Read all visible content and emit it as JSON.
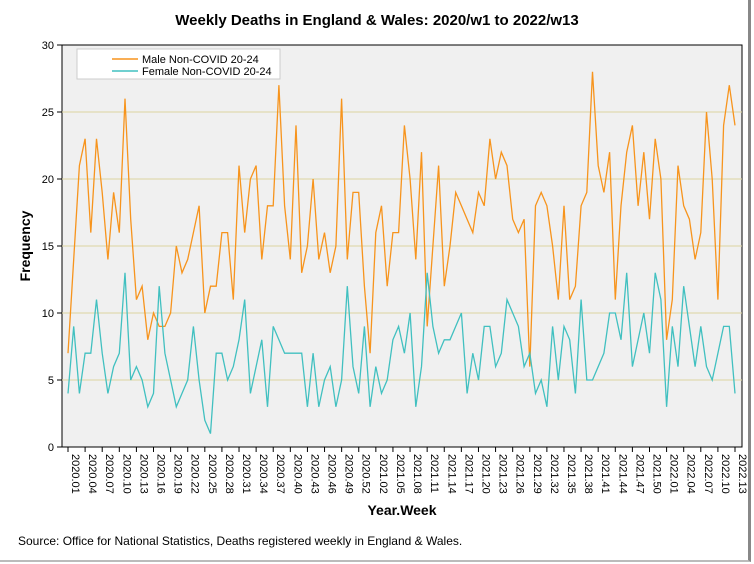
{
  "chart_data": {
    "type": "line",
    "title": "Weekly Deaths in England & Wales: 2020/w1 to 2022/w13",
    "xlabel": "Year.Week",
    "ylabel": "Frequency",
    "ylim": [
      0,
      30
    ],
    "yticks": [
      0,
      5,
      10,
      15,
      20,
      25,
      30
    ],
    "grid": true,
    "legend_position": "top-left",
    "weeks_per_year": {
      "2020": 53,
      "2021": 52,
      "2022": 13
    },
    "tick_every": 3,
    "series": [
      {
        "name": "Male Non-COVID 20-24",
        "color": "#f7941d",
        "values": [
          7,
          14,
          21,
          23,
          16,
          23,
          19,
          14,
          19,
          16,
          26,
          17,
          11,
          12,
          8,
          10,
          9,
          9,
          10,
          15,
          13,
          14,
          16,
          18,
          10,
          12,
          12,
          16,
          16,
          11,
          21,
          16,
          20,
          21,
          14,
          18,
          18,
          27,
          18,
          14,
          24,
          13,
          15,
          20,
          14,
          16,
          13,
          15,
          26,
          14,
          19,
          19,
          12,
          7,
          16,
          18,
          12,
          16,
          16,
          24,
          20,
          14,
          22,
          9,
          15,
          21,
          12,
          15,
          19,
          18,
          17,
          16,
          19,
          18,
          23,
          20,
          22,
          21,
          17,
          16,
          17,
          6,
          18,
          19,
          18,
          15,
          11,
          18,
          11,
          12,
          18,
          19,
          28,
          21,
          19,
          22,
          11,
          18,
          22,
          24,
          18,
          22,
          17,
          23,
          20,
          8,
          11,
          21,
          18,
          17,
          14,
          16,
          25,
          20,
          11,
          24,
          27,
          24
        ]
      },
      {
        "name": "Female Non-COVID 20-24",
        "color": "#41c0c0",
        "values": [
          4,
          9,
          4,
          7,
          7,
          11,
          7,
          4,
          6,
          7,
          13,
          5,
          6,
          5,
          3,
          4,
          12,
          7,
          5,
          3,
          4,
          5,
          9,
          5,
          2,
          1,
          7,
          7,
          5,
          6,
          8,
          11,
          4,
          6,
          8,
          3,
          9,
          8,
          7,
          7,
          7,
          7,
          3,
          7,
          3,
          5,
          6,
          3,
          5,
          12,
          6,
          4,
          9,
          3,
          6,
          4,
          5,
          8,
          9,
          7,
          10,
          3,
          6,
          13,
          9,
          7,
          8,
          8,
          9,
          10,
          4,
          7,
          5,
          9,
          9,
          6,
          7,
          11,
          10,
          9,
          6,
          7,
          4,
          5,
          3,
          9,
          5,
          9,
          8,
          4,
          11,
          5,
          5,
          6,
          7,
          10,
          10,
          8,
          13,
          6,
          8,
          10,
          7,
          13,
          11,
          3,
          9,
          6,
          12,
          9,
          6,
          9,
          6,
          5,
          7,
          9,
          9,
          4
        ]
      }
    ],
    "source": "Source: Office for National Statistics, Deaths registered weekly in England & Wales."
  }
}
